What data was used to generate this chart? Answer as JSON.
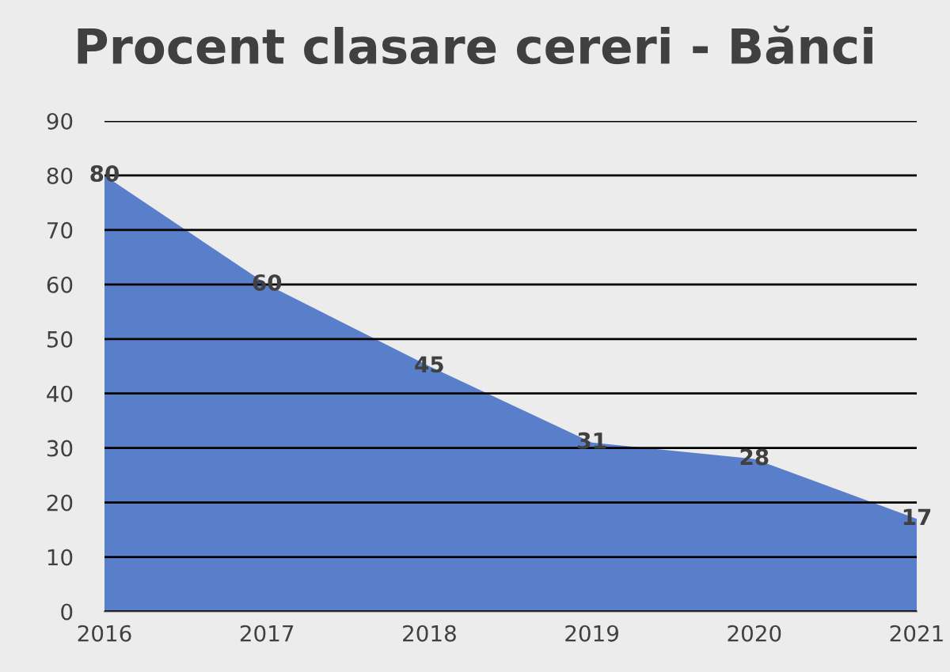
{
  "chart_data": {
    "type": "area",
    "title": "Procent clasare cereri - Bănci",
    "categories": [
      "2016",
      "2017",
      "2018",
      "2019",
      "2020",
      "2021"
    ],
    "series": [
      {
        "color": "#5a7fca",
        "values": [
          80,
          60,
          45,
          31,
          28,
          17
        ]
      }
    ],
    "ylim": [
      0,
      90
    ],
    "yticks": [
      0,
      10,
      20,
      30,
      40,
      50,
      60,
      70,
      80,
      90
    ],
    "grid": "y",
    "data_labels": true,
    "legend": false
  }
}
